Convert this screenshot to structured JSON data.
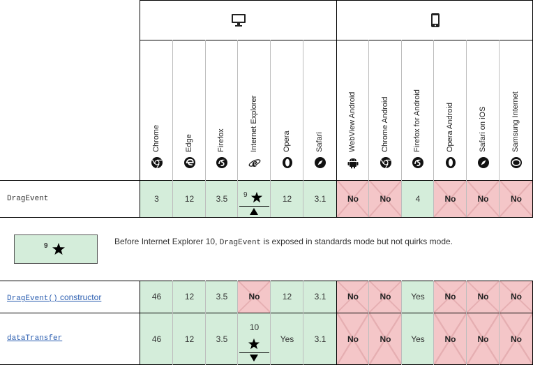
{
  "platforms": {
    "desktop_icon": "desktop-icon",
    "mobile_icon": "mobile-icon"
  },
  "browsers": [
    {
      "name": "Chrome",
      "icon": "chrome-icon"
    },
    {
      "name": "Edge",
      "icon": "edge-icon"
    },
    {
      "name": "Firefox",
      "icon": "firefox-icon"
    },
    {
      "name": "Internet Explorer",
      "icon": "ie-icon"
    },
    {
      "name": "Opera",
      "icon": "opera-icon"
    },
    {
      "name": "Safari",
      "icon": "safari-icon"
    },
    {
      "name": "WebView Android",
      "icon": "android-icon"
    },
    {
      "name": "Chrome Android",
      "icon": "chrome-icon"
    },
    {
      "name": "Firefox for Android",
      "icon": "firefox-icon"
    },
    {
      "name": "Opera Android",
      "icon": "opera-icon"
    },
    {
      "name": "Safari on iOS",
      "icon": "safari-icon"
    },
    {
      "name": "Samsung Internet",
      "icon": "samsung-icon"
    }
  ],
  "rows": [
    {
      "feature": "DragEvent",
      "values": [
        "3",
        "12",
        "3.5",
        "9",
        "12",
        "3.1",
        "No",
        "No",
        "4",
        "No",
        "No",
        "No"
      ]
    },
    {
      "feature": "DragEvent() constructor",
      "feature_code": "DragEvent()",
      "feature_suffix": " constructor",
      "values": [
        "46",
        "12",
        "3.5",
        "No",
        "12",
        "3.1",
        "No",
        "No",
        "Yes",
        "No",
        "No",
        "No"
      ]
    },
    {
      "feature": "dataTransfer",
      "values": [
        "46",
        "12",
        "3.5",
        "10",
        "Yes",
        "3.1",
        "No",
        "No",
        "Yes",
        "No",
        "No",
        "No"
      ]
    }
  ],
  "note": {
    "badge_version": "9",
    "text_before": "Before Internet Explorer 10, ",
    "text_code": "DragEvent",
    "text_after": " is exposed in standards mode but not quirks mode."
  },
  "colors": {
    "supported": "#d4edda",
    "unsupported": "#f4c6c8"
  }
}
